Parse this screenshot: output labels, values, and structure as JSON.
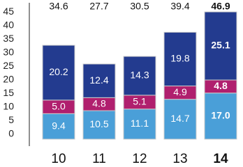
{
  "chart_data": {
    "type": "stacked_bar",
    "categories": [
      "10",
      "11",
      "12",
      "13",
      "14"
    ],
    "series": [
      {
        "color": "#4a9fd8",
        "values": [
          9.4,
          10.5,
          11.1,
          14.7,
          17.0
        ],
        "value_labels": [
          "9.4",
          "10.5",
          "11.1",
          "14.7",
          "17.0"
        ]
      },
      {
        "color": "#b01f6e",
        "values": [
          5.0,
          4.8,
          5.1,
          4.9,
          4.8
        ],
        "value_labels": [
          "5.0",
          "4.8",
          "5.1",
          "4.9",
          "4.8"
        ]
      },
      {
        "color": "#233b8f",
        "values": [
          20.2,
          12.4,
          14.3,
          19.8,
          25.1
        ],
        "value_labels": [
          "20.2",
          "12.4",
          "14.3",
          "19.8",
          "25.1"
        ]
      }
    ],
    "totals": [
      34.6,
      27.7,
      30.5,
      39.4,
      46.9
    ],
    "emphasis_index": 4,
    "ylim": [
      0,
      50
    ],
    "yticks": [
      0,
      5,
      10,
      15,
      20,
      25,
      30,
      35,
      40,
      45
    ],
    "grid": false
  }
}
